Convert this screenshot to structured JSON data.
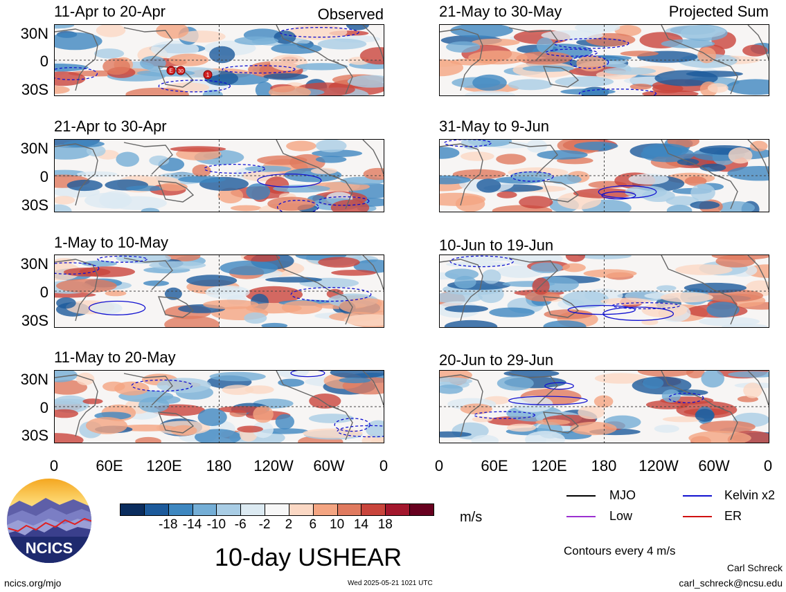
{
  "observed_label": "Observed",
  "projected_label": "Projected Sum",
  "left_panels": [
    {
      "title": "11-Apr to 20-Apr"
    },
    {
      "title": "21-Apr to 30-Apr"
    },
    {
      "title": "1-May to 10-May"
    },
    {
      "title": "11-May to 20-May"
    }
  ],
  "right_panels": [
    {
      "title": "21-May to 30-May"
    },
    {
      "title": "31-May to 9-Jun"
    },
    {
      "title": "10-Jun to 19-Jun"
    },
    {
      "title": "20-Jun to 29-Jun"
    }
  ],
  "y_ticks": [
    "30N",
    "0",
    "30S"
  ],
  "x_ticks": [
    "0",
    "60E",
    "120E",
    "180",
    "120W",
    "60W",
    "0"
  ],
  "storm_markers": [
    "E",
    "30",
    "1"
  ],
  "colorbar": {
    "colors": [
      "#0b2d5e",
      "#1c5a9b",
      "#3e87c0",
      "#74aed6",
      "#a9cde5",
      "#dceaf2",
      "#f7f7f7",
      "#fbd8c4",
      "#f4a582",
      "#e07a5f",
      "#c9453c",
      "#a3172d",
      "#67001f"
    ],
    "ticks": [
      "-18",
      "-14",
      "-10",
      "-6",
      "-2",
      "2",
      "6",
      "10",
      "14",
      "18"
    ],
    "unit": "m/s"
  },
  "legend": {
    "mjo": {
      "label": "MJO",
      "color": "#000000"
    },
    "low": {
      "label": "Low",
      "color": "#9b30d0"
    },
    "kelvin": {
      "label": "Kelvin x2",
      "color": "#1010d0"
    },
    "er": {
      "label": "ER",
      "color": "#d01010"
    }
  },
  "logo_text": "NCICS",
  "main_title": "10-day USHEAR",
  "contours_note": "Contours every 4 m/s",
  "author": "Carl Schreck",
  "email": "carl_schreck@ncsu.edu",
  "website": "ncics.org/mjo",
  "timestamp": "Wed 2025-05-21 1021 UTC"
}
